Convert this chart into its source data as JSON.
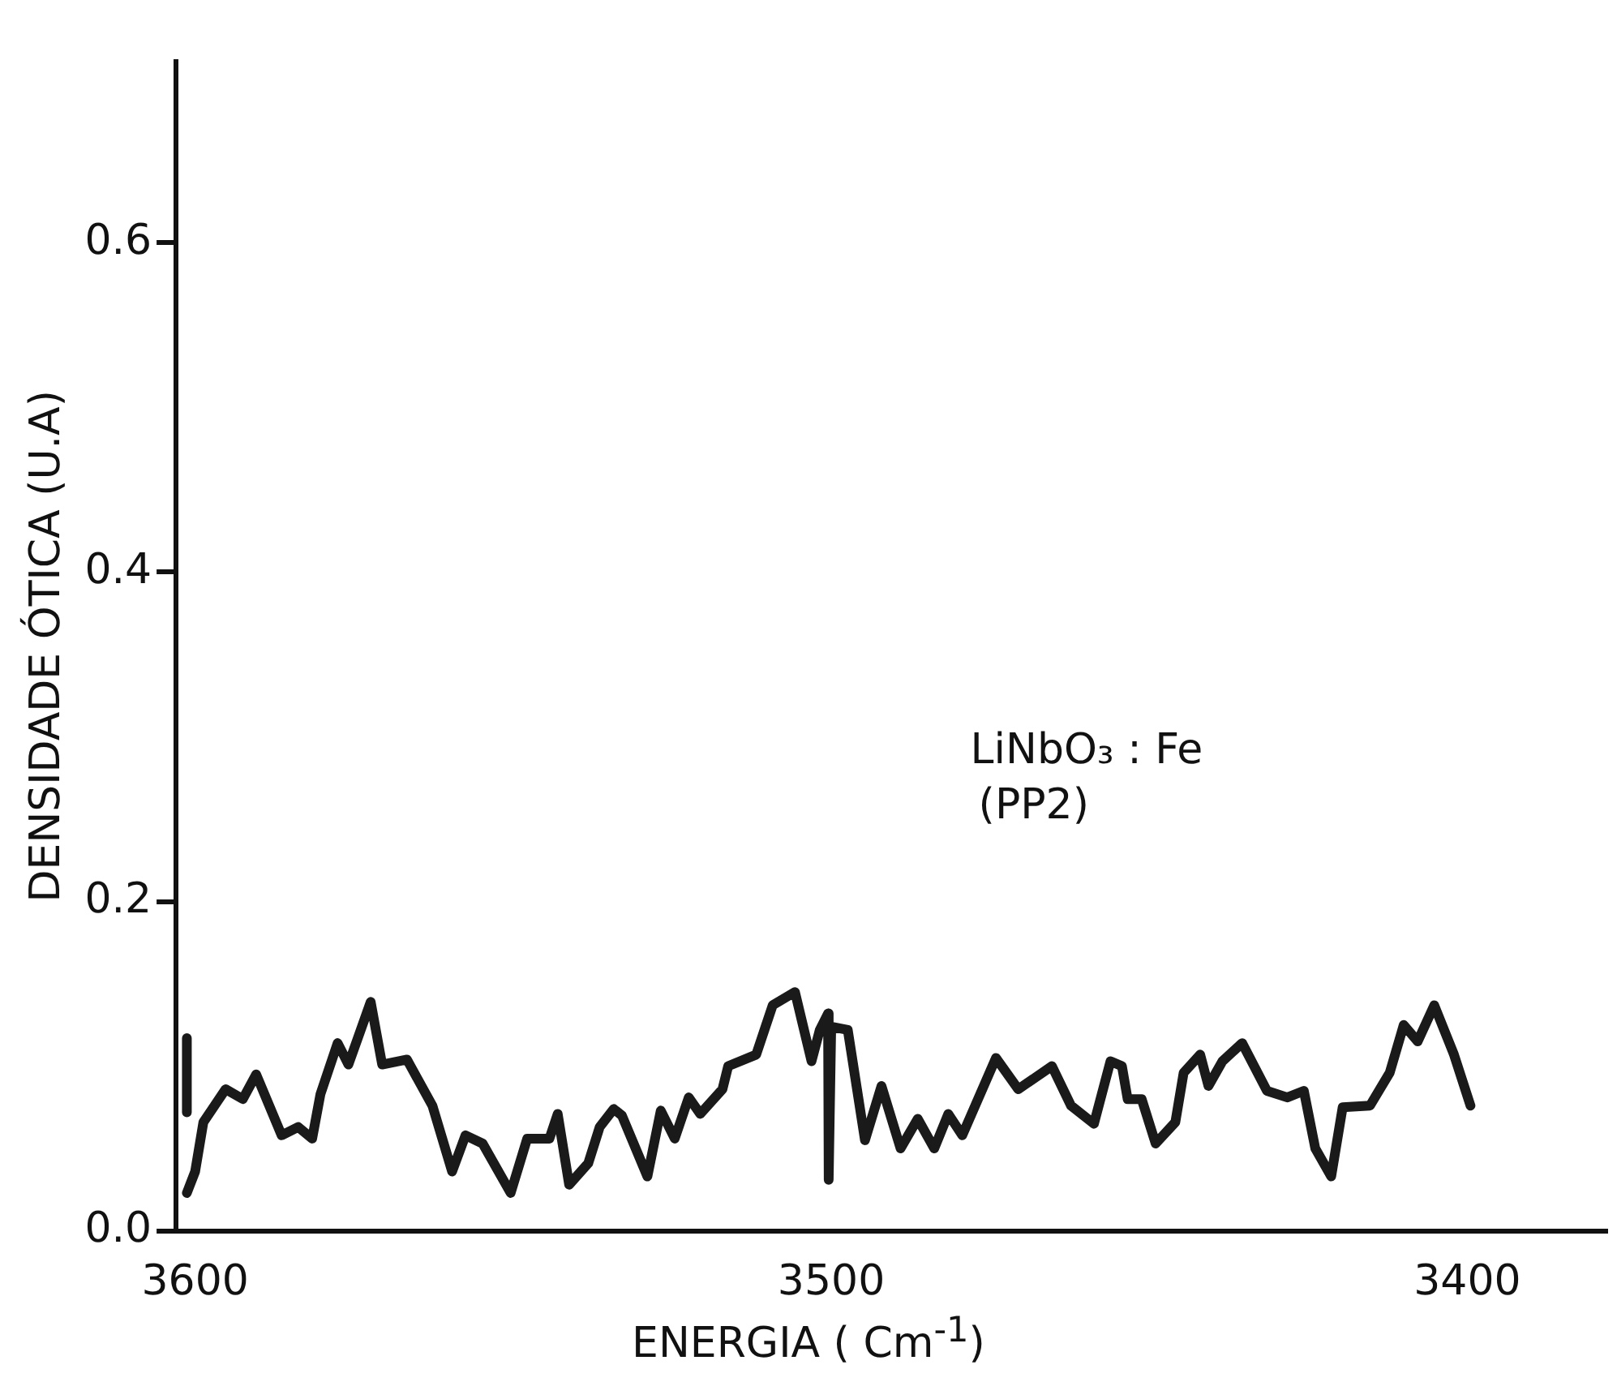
{
  "chart_data": {
    "type": "line",
    "xlabel": "ENERGIA ( Cm$^{-1}$)",
    "ylabel": "DENSIDADE ÓTICA (U.A)",
    "annotations": [
      "LiNbO₃ : Fe",
      "(PP2)"
    ],
    "xlim": [
      3603,
      3378
    ],
    "xticks": [
      3600,
      3500,
      3400
    ],
    "ylim": [
      0,
      0.71
    ],
    "yticks": [
      {
        "value": 0,
        "label": "0.0"
      },
      {
        "value": 0.2,
        "label": "0.2"
      },
      {
        "value": 0.4,
        "label": "0.4"
      },
      {
        "value": 0.6,
        "label": "0.6"
      }
    ],
    "grid": false,
    "legend": false,
    "marker": "none",
    "line_style": "solid",
    "series": [
      {
        "color": "#1a1a1a",
        "x": [
          3601.3,
          3600,
          3598.7,
          3595.2,
          3592.5,
          3590.4,
          3586.4,
          3583.8,
          3581.6,
          3580.3,
          3577.6,
          3575.9,
          3572.4,
          3570.6,
          3566.7,
          3562.7,
          3559.6,
          3557.5,
          3554.8,
          3550.4,
          3547.8,
          3544.3,
          3543,
          3541.2,
          3538.2,
          3536.4,
          3534.2,
          3532.9,
          3528.9,
          3526.8,
          3524.6,
          3522.4,
          3520.6,
          3517.1,
          3516.2,
          3511.8,
          3509.2,
          3505.7,
          3503.1,
          3501.8,
          3500.5,
          3500.4,
          3500,
          3497.4,
          3494.7,
          3492.1,
          3489.1,
          3486.4,
          3483.8,
          3481.6,
          3479.4,
          3474.1,
          3470.6,
          3465.3,
          3462.3,
          3458.7,
          3456.1,
          3454.3,
          3453.4,
          3451.2,
          3449,
          3445.9,
          3444.6,
          3442,
          3440.7,
          3438.5,
          3435.4,
          3431.5,
          3428.3,
          3425.7,
          3423.9,
          3421.4,
          3419.6,
          3415.3,
          3412.2,
          3410,
          3407.8,
          3405.2,
          3402.1,
          3399.5
        ],
        "values": [
          0.023,
          0.036,
          0.066,
          0.086,
          0.08,
          0.095,
          0.058,
          0.063,
          0.056,
          0.083,
          0.114,
          0.101,
          0.139,
          0.101,
          0.104,
          0.076,
          0.036,
          0.058,
          0.053,
          0.023,
          0.056,
          0.056,
          0.071,
          0.028,
          0.041,
          0.063,
          0.074,
          0.07,
          0.033,
          0.073,
          0.056,
          0.081,
          0.071,
          0.086,
          0.1,
          0.107,
          0.137,
          0.145,
          0.103,
          0.122,
          0.132,
          0.031,
          0.124,
          0.122,
          0.055,
          0.088,
          0.05,
          0.068,
          0.05,
          0.071,
          0.058,
          0.105,
          0.086,
          0.1,
          0.076,
          0.065,
          0.103,
          0.1,
          0.08,
          0.08,
          0.053,
          0.066,
          0.096,
          0.107,
          0.088,
          0.103,
          0.114,
          0.085,
          0.081,
          0.085,
          0.05,
          0.033,
          0.075,
          0.076,
          0.096,
          0.125,
          0.115,
          0.137,
          0.107,
          0.076
        ]
      },
      {
        "color": "#1a1a1a",
        "x": [
          3601.3,
          3601.3
        ],
        "values": [
          0.072,
          0.117
        ]
      }
    ]
  }
}
